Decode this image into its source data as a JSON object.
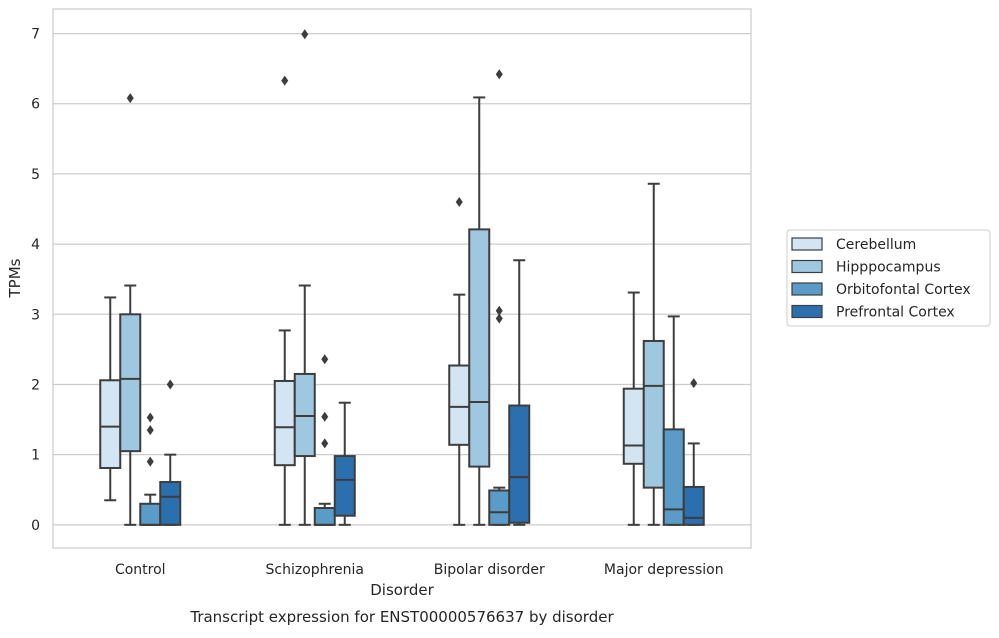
{
  "chart_data": {
    "type": "box",
    "caption": "Transcript expression for ENST00000576637 by disorder",
    "xlabel": "Disorder",
    "ylabel": "TPMs",
    "ylim": [
      -0.33,
      7.35
    ],
    "yticks": [
      0,
      1,
      2,
      3,
      4,
      5,
      6,
      7
    ],
    "grid": "horizontal",
    "legend_position": "right",
    "categories": [
      "Control",
      "Schizophrenia",
      "Bipolar disorder",
      "Major depression"
    ],
    "series": [
      {
        "name": "Cerebellum",
        "color": "#d3e4f3",
        "boxes": [
          {
            "whislo": 0.35,
            "q1": 0.81,
            "med": 1.4,
            "q3": 2.06,
            "whishi": 3.24,
            "fliers": []
          },
          {
            "whislo": 0.0,
            "q1": 0.85,
            "med": 1.39,
            "q3": 2.05,
            "whishi": 2.77,
            "fliers": [
              6.33
            ]
          },
          {
            "whislo": 0.0,
            "q1": 1.14,
            "med": 1.68,
            "q3": 2.27,
            "whishi": 3.28,
            "fliers": [
              4.6
            ]
          },
          {
            "whislo": 0.0,
            "q1": 0.87,
            "med": 1.13,
            "q3": 1.94,
            "whishi": 3.31,
            "fliers": []
          }
        ]
      },
      {
        "name": "Hipppocampus",
        "color": "#9fc8e0",
        "boxes": [
          {
            "whislo": 0.0,
            "q1": 1.05,
            "med": 2.08,
            "q3": 3.0,
            "whishi": 3.41,
            "fliers": [
              6.08
            ]
          },
          {
            "whislo": 0.0,
            "q1": 0.98,
            "med": 1.55,
            "q3": 2.15,
            "whishi": 3.41,
            "fliers": [
              6.99
            ]
          },
          {
            "whislo": 0.0,
            "q1": 0.83,
            "med": 1.75,
            "q3": 4.21,
            "whishi": 6.09,
            "fliers": []
          },
          {
            "whislo": 0.0,
            "q1": 0.53,
            "med": 1.98,
            "q3": 2.62,
            "whishi": 4.86,
            "fliers": []
          }
        ]
      },
      {
        "name": "Orbitofontal Cortex",
        "color": "#5a9bc7",
        "boxes": [
          {
            "whislo": 0.0,
            "q1": 0.0,
            "med": 0.0,
            "q3": 0.3,
            "whishi": 0.43,
            "fliers": [
              0.9,
              1.35,
              1.53
            ]
          },
          {
            "whislo": 0.0,
            "q1": 0.0,
            "med": 0.0,
            "q3": 0.24,
            "whishi": 0.3,
            "fliers": [
              1.16,
              1.54,
              2.36
            ]
          },
          {
            "whislo": 0.0,
            "q1": 0.0,
            "med": 0.18,
            "q3": 0.49,
            "whishi": 0.53,
            "fliers": [
              2.94,
              3.05,
              6.42
            ]
          },
          {
            "whislo": 0.0,
            "q1": 0.0,
            "med": 0.22,
            "q3": 1.36,
            "whishi": 2.97,
            "fliers": []
          }
        ]
      },
      {
        "name": "Prefrontal Cortex",
        "color": "#2c6faf",
        "boxes": [
          {
            "whislo": 0.0,
            "q1": 0.0,
            "med": 0.4,
            "q3": 0.61,
            "whishi": 1.0,
            "fliers": [
              2.0
            ]
          },
          {
            "whislo": 0.0,
            "q1": 0.13,
            "med": 0.64,
            "q3": 0.98,
            "whishi": 1.74,
            "fliers": []
          },
          {
            "whislo": 0.0,
            "q1": 0.03,
            "med": 0.68,
            "q3": 1.7,
            "whishi": 3.77,
            "fliers": []
          },
          {
            "whislo": 0.0,
            "q1": 0.0,
            "med": 0.1,
            "q3": 0.54,
            "whishi": 1.16,
            "fliers": [
              2.02
            ]
          }
        ]
      }
    ]
  }
}
